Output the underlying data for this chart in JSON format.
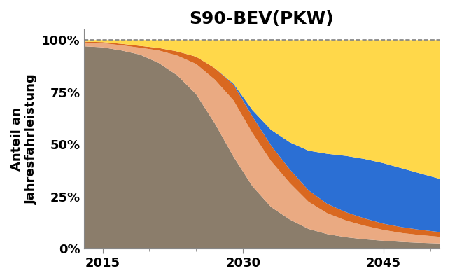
{
  "title": "S90-BEV(PKW)",
  "ylabel": "Anteil an\nJahresfahrleistung",
  "years": [
    2013,
    2015,
    2017,
    2019,
    2021,
    2023,
    2025,
    2027,
    2029,
    2031,
    2033,
    2035,
    2037,
    2039,
    2041,
    2043,
    2045,
    2047,
    2049,
    2051
  ],
  "layers": {
    "taupe": [
      0.97,
      0.965,
      0.95,
      0.93,
      0.89,
      0.83,
      0.74,
      0.6,
      0.44,
      0.3,
      0.2,
      0.14,
      0.095,
      0.07,
      0.055,
      0.045,
      0.038,
      0.032,
      0.028,
      0.025
    ],
    "light_peach": [
      0.018,
      0.02,
      0.025,
      0.033,
      0.06,
      0.095,
      0.145,
      0.21,
      0.27,
      0.255,
      0.22,
      0.175,
      0.13,
      0.1,
      0.08,
      0.065,
      0.052,
      0.043,
      0.037,
      0.032
    ],
    "orange": [
      0.004,
      0.005,
      0.007,
      0.009,
      0.012,
      0.02,
      0.035,
      0.055,
      0.075,
      0.08,
      0.075,
      0.065,
      0.055,
      0.045,
      0.04,
      0.035,
      0.03,
      0.028,
      0.025,
      0.023
    ],
    "blue": [
      0.0,
      0.0,
      0.0,
      0.0,
      0.0,
      0.0,
      0.0,
      0.0,
      0.005,
      0.03,
      0.075,
      0.13,
      0.19,
      0.24,
      0.27,
      0.285,
      0.29,
      0.282,
      0.27,
      0.255
    ],
    "yellow": [
      0.008,
      0.01,
      0.018,
      0.028,
      0.038,
      0.055,
      0.08,
      0.135,
      0.21,
      0.335,
      0.43,
      0.49,
      0.53,
      0.545,
      0.555,
      0.57,
      0.59,
      0.615,
      0.64,
      0.665
    ]
  },
  "colors": {
    "taupe": "#8B7D6B",
    "light_peach": "#EAAA82",
    "orange": "#D96820",
    "blue": "#2B6FD4",
    "yellow": "#FFD84A"
  },
  "xlim": [
    2013,
    2051
  ],
  "xticks": [
    2015,
    2030,
    2045
  ],
  "ylim": [
    0,
    1.05
  ],
  "yticks": [
    0.0,
    0.25,
    0.5,
    0.75,
    1.0
  ],
  "yticklabels": [
    "0%",
    "25%",
    "50%",
    "75%",
    "100%"
  ],
  "title_fontsize": 18,
  "label_fontsize": 13,
  "tick_fontsize": 13
}
